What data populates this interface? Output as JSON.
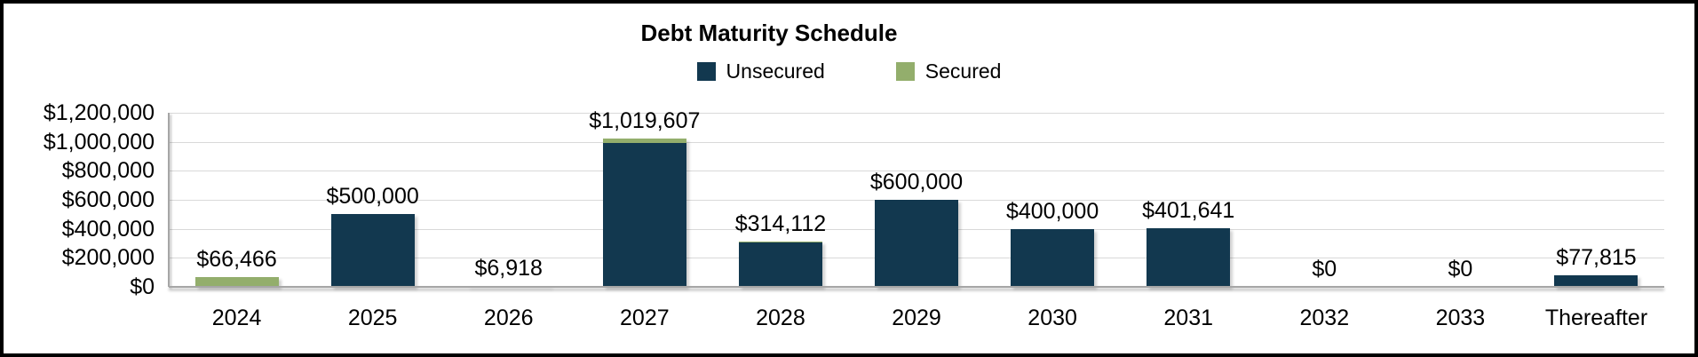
{
  "chart_data": {
    "type": "bar",
    "stacked": true,
    "title": "Debt Maturity Schedule",
    "categories": [
      "2024",
      "2025",
      "2026",
      "2027",
      "2028",
      "2029",
      "2030",
      "2031",
      "2032",
      "2033",
      "Thereafter"
    ],
    "series": [
      {
        "name": "Unsecured",
        "color": "#12384F",
        "values": [
          0,
          500000,
          6918,
          989607,
          306112,
          600000,
          400000,
          401641,
          0,
          0,
          77815
        ]
      },
      {
        "name": "Secured",
        "color": "#93AE6C",
        "values": [
          66466,
          0,
          0,
          30000,
          8000,
          0,
          0,
          0,
          0,
          0,
          0
        ]
      }
    ],
    "bar_totals": [
      66466,
      500000,
      6918,
      1019607,
      314112,
      600000,
      400000,
      401641,
      0,
      0,
      77815
    ],
    "bar_total_labels": [
      "$66,466",
      "$500,000",
      "$6,918",
      "$1,019,607",
      "$314,112",
      "$600,000",
      "$400,000",
      "$401,641",
      "$0",
      "$0",
      "$77,815"
    ],
    "ylim": [
      0,
      1200000
    ],
    "ytick_step": 200000,
    "ytick_labels": [
      "$0",
      "$200,000",
      "$400,000",
      "$600,000",
      "$800,000",
      "$1,000,000",
      "$1,200,000"
    ],
    "grid": true,
    "legend_position": "top-center",
    "axis_color": "#A6A6A6",
    "gridline_color": "#D9D9D9",
    "text_color": "#000000"
  }
}
